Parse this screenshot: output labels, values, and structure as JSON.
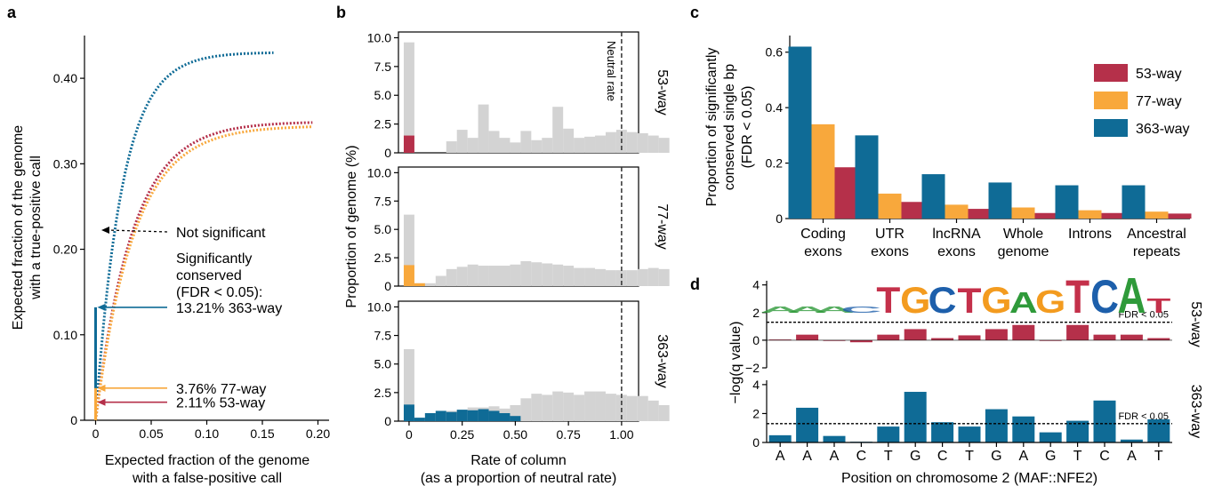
{
  "panels": {
    "a": "a",
    "b": "b",
    "c": "c",
    "d": "d"
  },
  "colors": {
    "w53": "#b5304a",
    "w77": "#f8a83c",
    "w363": "#0f6b96",
    "grey": "#d3d3d3"
  },
  "chart_data": [
    {
      "id": "a",
      "type": "line",
      "xlabel": [
        "Expected fraction of the genome",
        "with a false-positive call"
      ],
      "ylabel": [
        "Expected fraction of the genome",
        "with a true-positive call"
      ],
      "xlim": [
        -0.01,
        0.21
      ],
      "ylim": [
        0,
        0.45
      ],
      "xticks": [
        0,
        0.05,
        0.1,
        0.15,
        0.2
      ],
      "xtick_labels": [
        "0",
        "0.05",
        "0.10",
        "0.15",
        "0.20"
      ],
      "yticks": [
        0,
        0.1,
        0.2,
        0.3,
        0.4
      ],
      "ytick_labels": [
        "0",
        "0.10",
        "0.20",
        "0.30",
        "0.40"
      ],
      "series": [
        {
          "name": "363-way",
          "color_key": "w363",
          "xmax": 0.16,
          "plateau": 0.432,
          "k": 42,
          "significant": 0.1321
        },
        {
          "name": "53-way",
          "color_key": "w53",
          "xmax": 0.195,
          "plateau": 0.35,
          "k": 30,
          "significant": 0.0211
        },
        {
          "name": "77-way",
          "color_key": "w77",
          "xmax": 0.195,
          "plateau": 0.345,
          "k": 29,
          "significant": 0.0376
        }
      ],
      "annotations": {
        "not_significant": "Not significant",
        "sig_lines": [
          "Significantly",
          "conserved",
          "(FDR < 0.05):"
        ],
        "l363": "13.21% 363-way",
        "l77": "3.76% 77-way",
        "l53": "2.11% 53-way"
      }
    },
    {
      "id": "b",
      "type": "bar",
      "xlabel": [
        "Rate of column",
        "(as a proportion of neutral rate)"
      ],
      "ylabel": "Proportion of genome (%)",
      "xlim": [
        -0.05,
        1.08
      ],
      "ylim": [
        0,
        10.5
      ],
      "xticks": [
        0,
        0.25,
        0.5,
        0.75,
        1.0
      ],
      "xtick_labels": [
        "0",
        "0.25",
        "0.50",
        "0.75",
        "1.00"
      ],
      "yticks": [
        0,
        2.5,
        5,
        7.5,
        10
      ],
      "ytick_labels": [
        "0",
        "2.5",
        "5.0",
        "7.5",
        "10.0"
      ],
      "bin_width": 0.05,
      "neutral_line": 1.0,
      "neutral_label": "Neutral rate",
      "subplots": [
        {
          "name": "53-way",
          "color_key": "w53",
          "total": [
            9.6,
            0,
            0,
            0,
            1.0,
            2.0,
            1.3,
            4.2,
            1.9,
            1.3,
            0.9,
            1.9,
            1.1,
            1.3,
            4.0,
            2.1,
            1.3,
            1.4,
            1.5,
            1.8,
            2.0,
            1.8,
            1.7,
            1.5,
            1.3
          ],
          "highlight": [
            1.5,
            0,
            0,
            0,
            0,
            0,
            0,
            0,
            0,
            0,
            0,
            0,
            0,
            0,
            0,
            0,
            0,
            0,
            0,
            0,
            0,
            0,
            0,
            0,
            0
          ]
        },
        {
          "name": "77-way",
          "color_key": "w77",
          "total": [
            6.3,
            0.25,
            0.25,
            0.9,
            1.5,
            1.7,
            1.9,
            1.8,
            1.8,
            1.8,
            1.9,
            2.2,
            2.1,
            2.0,
            1.9,
            1.8,
            1.6,
            1.6,
            1.5,
            1.4,
            1.4,
            1.4,
            1.5,
            1.6,
            1.5
          ],
          "highlight": [
            1.85,
            0.25,
            0,
            0,
            0,
            0,
            0,
            0,
            0,
            0,
            0,
            0,
            0,
            0,
            0,
            0,
            0,
            0,
            0,
            0,
            0,
            0,
            0,
            0,
            0
          ]
        },
        {
          "name": "363-way",
          "color_key": "w363",
          "total": [
            6.3,
            0.3,
            0.7,
            0.7,
            0.9,
            1.0,
            1.2,
            1.2,
            1.3,
            1.1,
            1.4,
            2.0,
            2.4,
            2.3,
            2.6,
            2.5,
            2.3,
            2.6,
            2.6,
            2.4,
            2.3,
            2.2,
            2.2,
            1.8,
            1.4
          ],
          "highlight": [
            1.45,
            0.3,
            0.7,
            0.9,
            0.8,
            1.0,
            0.95,
            1.05,
            0.9,
            0.7,
            0.45,
            0,
            0,
            0,
            0,
            0,
            0,
            0,
            0,
            0,
            0,
            0,
            0,
            0,
            0
          ]
        }
      ]
    },
    {
      "id": "c",
      "type": "bar",
      "ylabel": [
        "Proportion of significantly",
        "conserved single bp",
        "(FDR < 0.05)"
      ],
      "ylim": [
        0,
        0.66
      ],
      "yticks": [
        0,
        0.2,
        0.4,
        0.6
      ],
      "ytick_labels": [
        "0",
        "0.2",
        "0.4",
        "0.6"
      ],
      "categories": [
        [
          "Coding",
          "exons"
        ],
        [
          "UTR",
          "exons"
        ],
        [
          "lncRNA",
          "exons"
        ],
        [
          "Whole",
          "genome"
        ],
        [
          "Introns",
          ""
        ],
        [
          "Ancestral",
          "repeats"
        ]
      ],
      "series": [
        {
          "name": "363-way",
          "color_key": "w363",
          "values": [
            0.62,
            0.3,
            0.16,
            0.13,
            0.12,
            0.12
          ]
        },
        {
          "name": "77-way",
          "color_key": "w77",
          "values": [
            0.34,
            0.09,
            0.05,
            0.04,
            0.03,
            0.025
          ]
        },
        {
          "name": "53-way",
          "color_key": "w53",
          "values": [
            0.185,
            0.06,
            0.035,
            0.02,
            0.02,
            0.018
          ]
        }
      ],
      "legend": [
        {
          "name": "53-way",
          "color_key": "w53"
        },
        {
          "name": "77-way",
          "color_key": "w77"
        },
        {
          "name": "363-way",
          "color_key": "w363"
        }
      ]
    },
    {
      "id": "d",
      "type": "bar",
      "xlabel": "Position on chromosome 2 (MAF::NFE2)",
      "ylabel": "−log(q value)",
      "categories": [
        "A",
        "A",
        "A",
        "C",
        "T",
        "G",
        "C",
        "T",
        "G",
        "A",
        "G",
        "T",
        "C",
        "A",
        "T"
      ],
      "fdr_label": "FDR < 0.05",
      "fdr_threshold": 1.3,
      "motif": {
        "letters": [
          "T",
          "G",
          "C",
          "T",
          "G",
          "A",
          "G",
          "T",
          "C",
          "A",
          "T"
        ],
        "start": 4
      },
      "subplots": [
        {
          "name": "53-way",
          "color_key": "w53",
          "ylim": [
            -2,
            4.3
          ],
          "yticks": [
            -2,
            0,
            2,
            4
          ],
          "ytick_labels": [
            "−2",
            "0",
            "2",
            "4"
          ],
          "values": [
            0.05,
            0.4,
            0.0,
            -0.15,
            0.4,
            0.8,
            0.15,
            0.35,
            0.8,
            1.1,
            0.0,
            1.1,
            0.4,
            0.4,
            0.15
          ]
        },
        {
          "name": "363-way",
          "color_key": "w363",
          "ylim": [
            0,
            4.3
          ],
          "yticks": [
            0,
            2,
            4
          ],
          "ytick_labels": [
            "0",
            "2",
            "4"
          ],
          "values": [
            0.5,
            2.4,
            0.45,
            0.05,
            1.1,
            3.5,
            1.4,
            1.1,
            2.3,
            1.8,
            0.7,
            1.5,
            2.9,
            0.2,
            1.6
          ]
        }
      ]
    }
  ]
}
